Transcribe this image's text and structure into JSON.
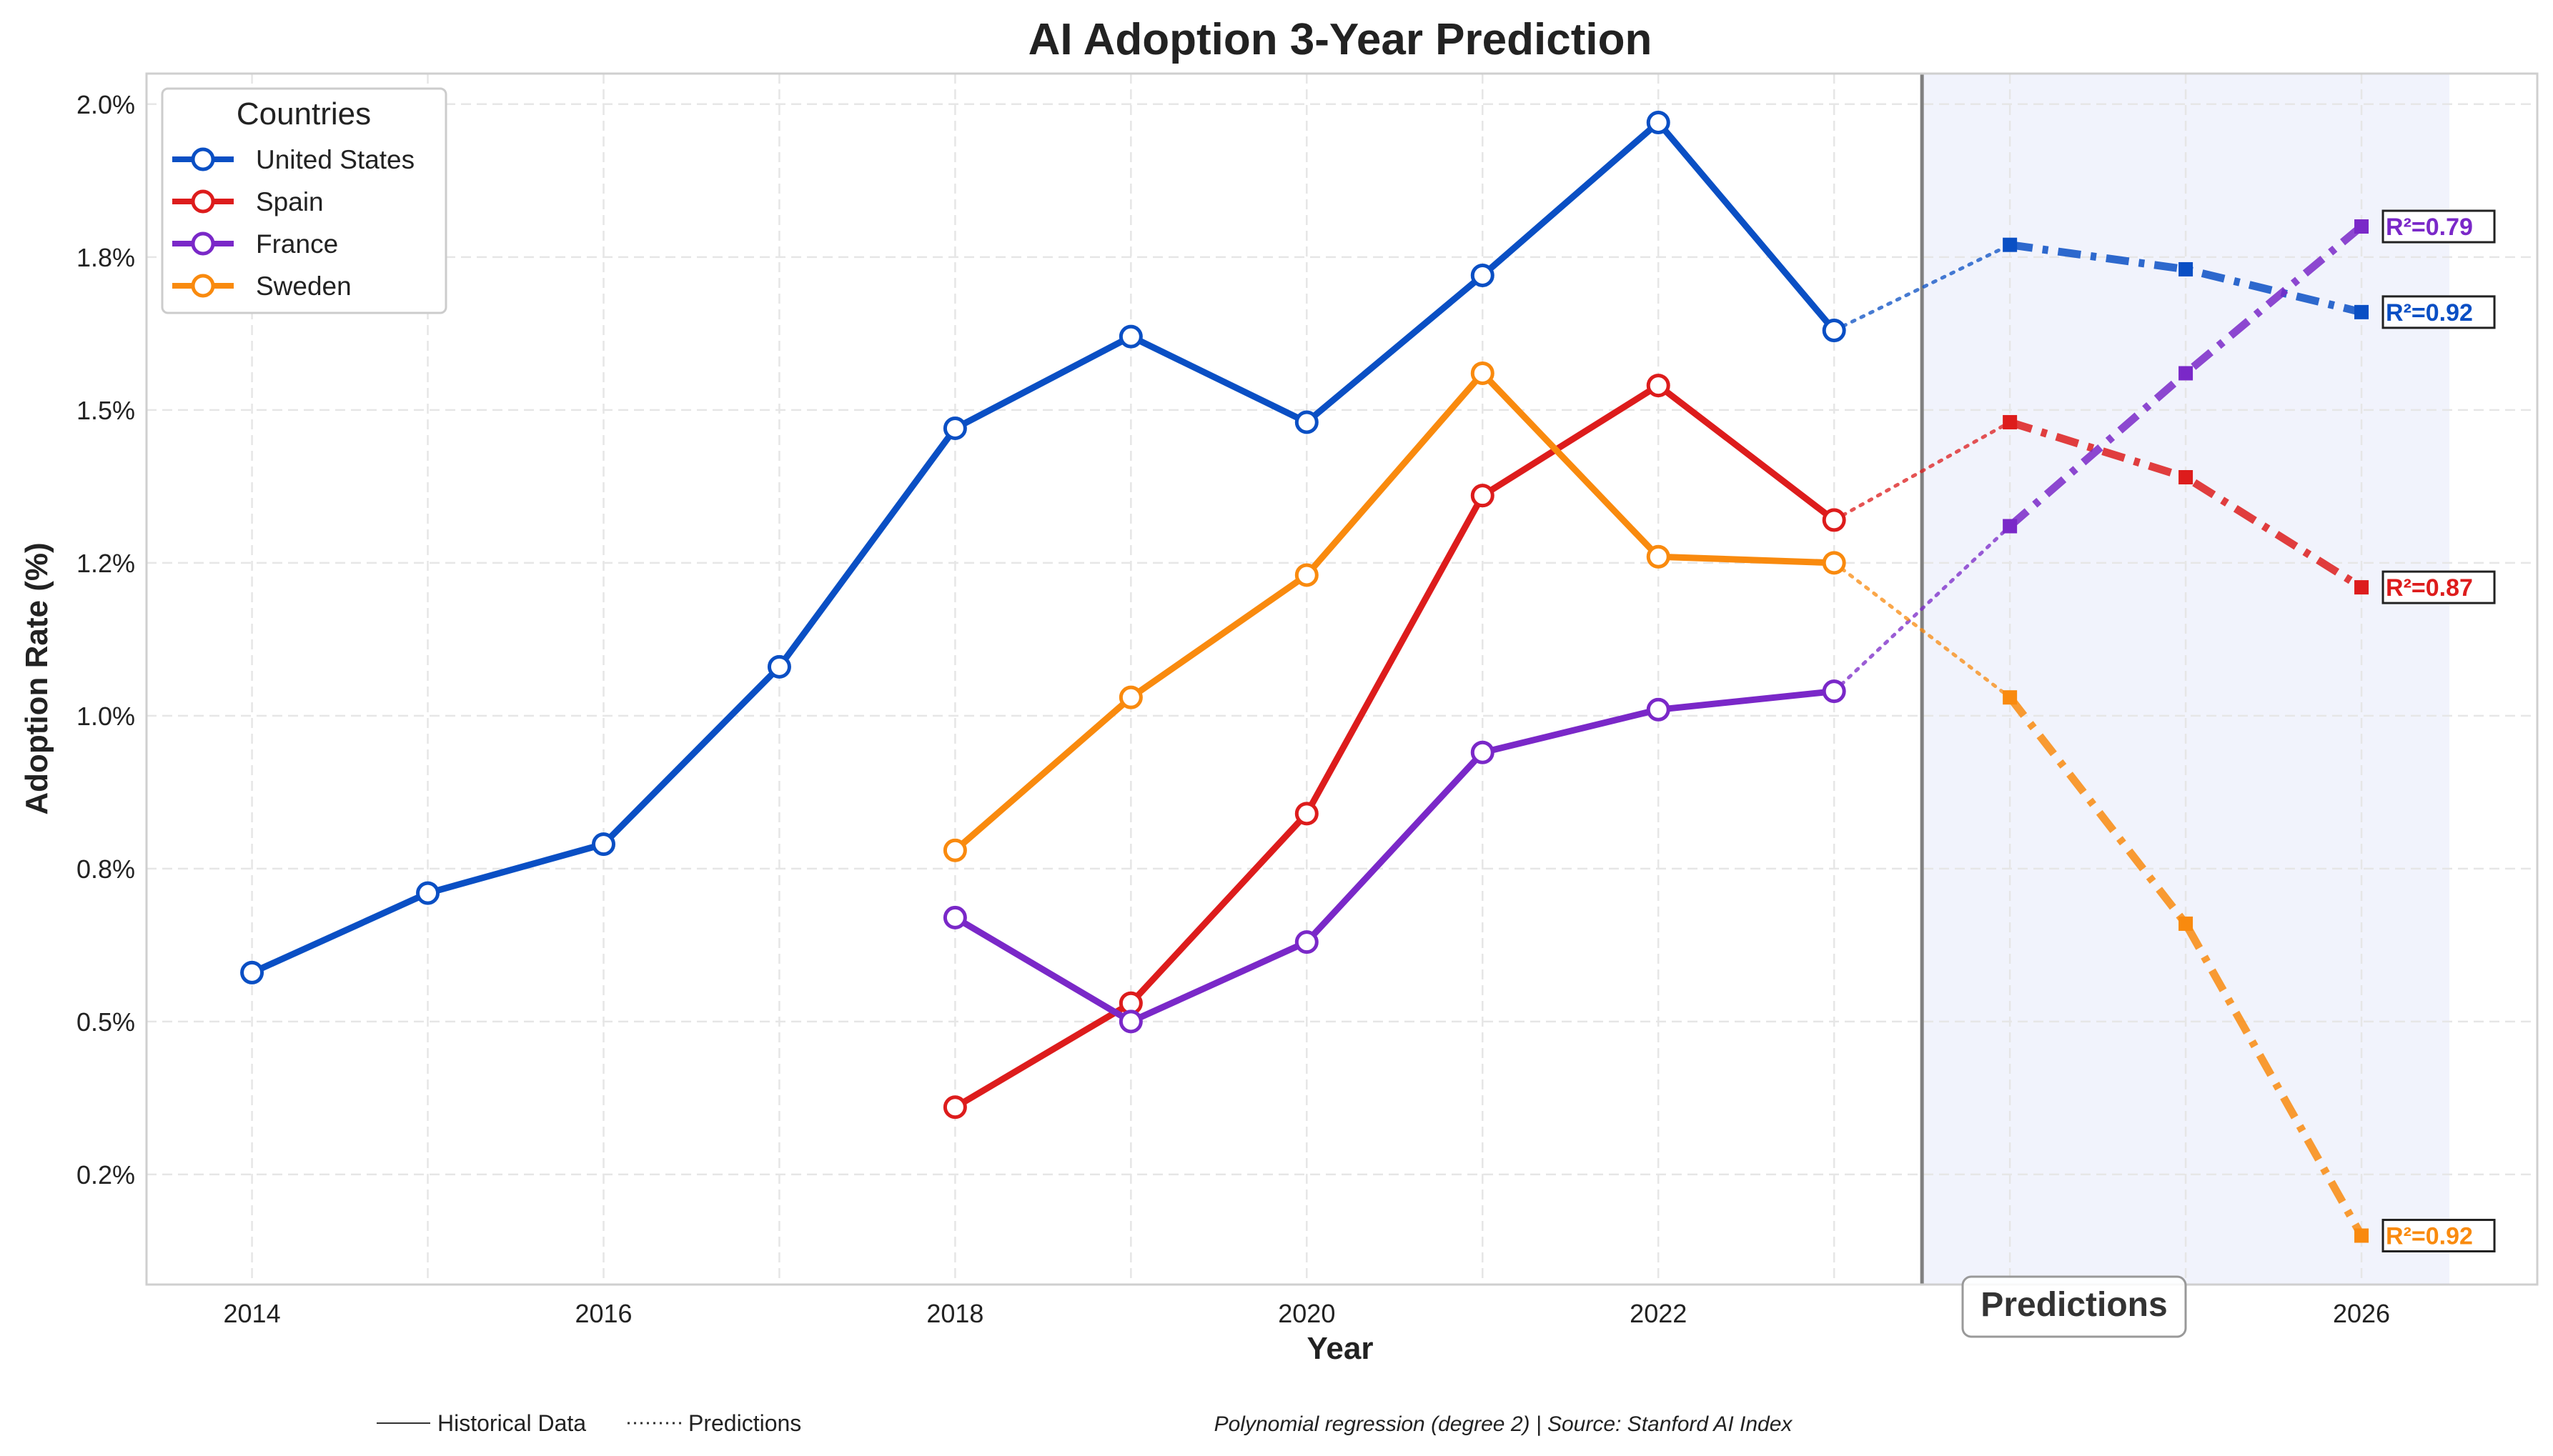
{
  "chart_data": {
    "type": "line",
    "title": "AI Adoption 3-Year Prediction",
    "xlabel": "Year",
    "ylabel": "Adoption Rate (%)",
    "xlim": [
      2013.4,
      2027.0
    ],
    "ylim": [
      0.07,
      2.05
    ],
    "x_ticks": [
      2014,
      2016,
      2018,
      2020,
      2022,
      2026
    ],
    "y_ticks": [
      0.25,
      0.5,
      0.75,
      1.0,
      1.25,
      1.5,
      1.75,
      2.0
    ],
    "y_tick_labels": [
      "0.2%",
      "0.5%",
      "0.8%",
      "1.0%",
      "1.2%",
      "1.5%",
      "1.8%",
      "2.0%"
    ],
    "grid": true,
    "legend": {
      "title": "Countries",
      "placement": "top-left"
    },
    "prediction_region": {
      "start": 2023.5,
      "end": 2026.5,
      "label": "Predictions"
    },
    "series": [
      {
        "name": "United States",
        "color": "#0a4fc4",
        "historical": {
          "x": [
            2014,
            2015,
            2016,
            2017,
            2018,
            2019,
            2020,
            2021,
            2022,
            2023
          ],
          "y": [
            0.58,
            0.71,
            0.79,
            1.08,
            1.47,
            1.62,
            1.48,
            1.72,
            1.97,
            1.63
          ]
        },
        "prediction": {
          "x": [
            2024,
            2025,
            2026
          ],
          "y": [
            1.77,
            1.73,
            1.66
          ]
        },
        "r2": "R²=0.92"
      },
      {
        "name": "Spain",
        "color": "#dd1c1c",
        "historical": {
          "x": [
            2018,
            2019,
            2020,
            2021,
            2022,
            2023
          ],
          "y": [
            0.36,
            0.53,
            0.84,
            1.36,
            1.54,
            1.32
          ]
        },
        "prediction": {
          "x": [
            2024,
            2025,
            2026
          ],
          "y": [
            1.48,
            1.39,
            1.21
          ]
        },
        "r2": "R²=0.87"
      },
      {
        "name": "France",
        "color": "#7a28c8",
        "historical": {
          "x": [
            2018,
            2019,
            2020,
            2021,
            2022,
            2023
          ],
          "y": [
            0.67,
            0.5,
            0.63,
            0.94,
            1.01,
            1.04
          ]
        },
        "prediction": {
          "x": [
            2024,
            2025,
            2026
          ],
          "y": [
            1.31,
            1.56,
            1.8
          ]
        },
        "r2": "R²=0.79"
      },
      {
        "name": "Sweden",
        "color": "#f98a0e",
        "historical": {
          "x": [
            2018,
            2019,
            2020,
            2021,
            2022,
            2023
          ],
          "y": [
            0.78,
            1.03,
            1.23,
            1.56,
            1.26,
            1.25
          ]
        },
        "prediction": {
          "x": [
            2024,
            2025,
            2026
          ],
          "y": [
            1.03,
            0.66,
            0.15
          ]
        },
        "r2": "R²=0.92"
      }
    ]
  },
  "footer": {
    "historical_label": "Historical Data",
    "predictions_label": "Predictions",
    "source_note": "Polynomial regression (degree 2) | Source: Stanford AI Index"
  }
}
